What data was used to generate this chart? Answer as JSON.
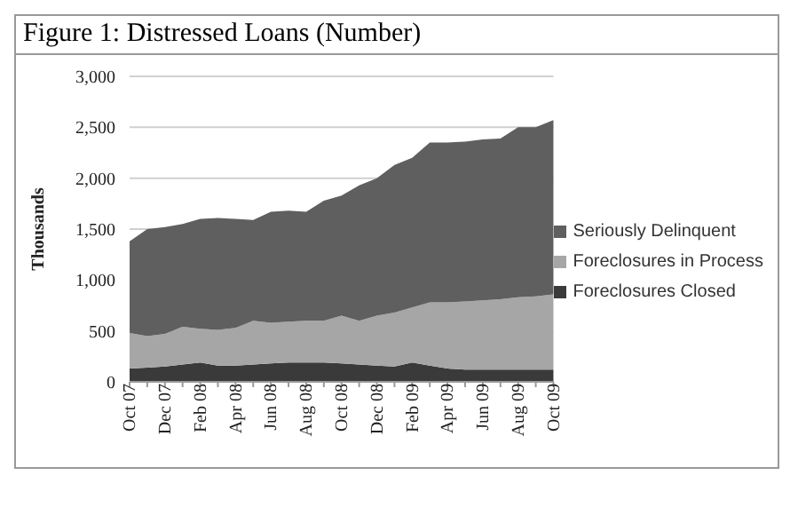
{
  "chart_data": {
    "type": "area",
    "title": "Figure 1: Distressed Loans (Number)",
    "ylabel": "Thousands",
    "stacked": true,
    "categories": [
      "Oct 07",
      null,
      "Dec 07",
      null,
      "Feb 08",
      null,
      "Apr 08",
      null,
      "Jun 08",
      null,
      "Aug 08",
      null,
      "Oct 08",
      null,
      "Dec 08",
      null,
      "Feb 09",
      null,
      "Apr 09",
      null,
      "Jun 09",
      null,
      "Aug 09",
      null,
      "Oct 09"
    ],
    "series": [
      {
        "name": "Foreclosures Closed",
        "color": "#3a3a3a",
        "values": [
          130,
          140,
          150,
          170,
          190,
          160,
          160,
          170,
          180,
          190,
          190,
          190,
          180,
          170,
          160,
          150,
          190,
          160,
          130,
          120,
          120,
          120,
          120,
          120,
          120
        ]
      },
      {
        "name": "Foreclosures in Process",
        "color": "#a6a6a6",
        "values": [
          350,
          310,
          320,
          370,
          330,
          350,
          370,
          430,
          400,
          400,
          410,
          410,
          470,
          430,
          490,
          530,
          540,
          620,
          650,
          670,
          680,
          690,
          710,
          720,
          740
        ]
      },
      {
        "name": "Seriously Delinquent",
        "color": "#5f5f5f",
        "values": [
          900,
          1050,
          1050,
          1010,
          1080,
          1100,
          1070,
          990,
          1090,
          1090,
          1070,
          1180,
          1180,
          1330,
          1350,
          1450,
          1470,
          1570,
          1570,
          1570,
          1580,
          1580,
          1670,
          1660,
          1710
        ]
      }
    ],
    "ylim": [
      0,
      3000
    ],
    "yticks": [
      0,
      {
        "value": 500,
        "label": "500"
      },
      {
        "value": 1000,
        "label": "1,000"
      },
      {
        "value": 1500,
        "label": "1,500"
      },
      {
        "value": 2000,
        "label": "2,000"
      },
      {
        "value": 2500,
        "label": "2,500"
      },
      {
        "value": 3000,
        "label": "3,000"
      }
    ],
    "grid": "y",
    "legend": "right"
  }
}
